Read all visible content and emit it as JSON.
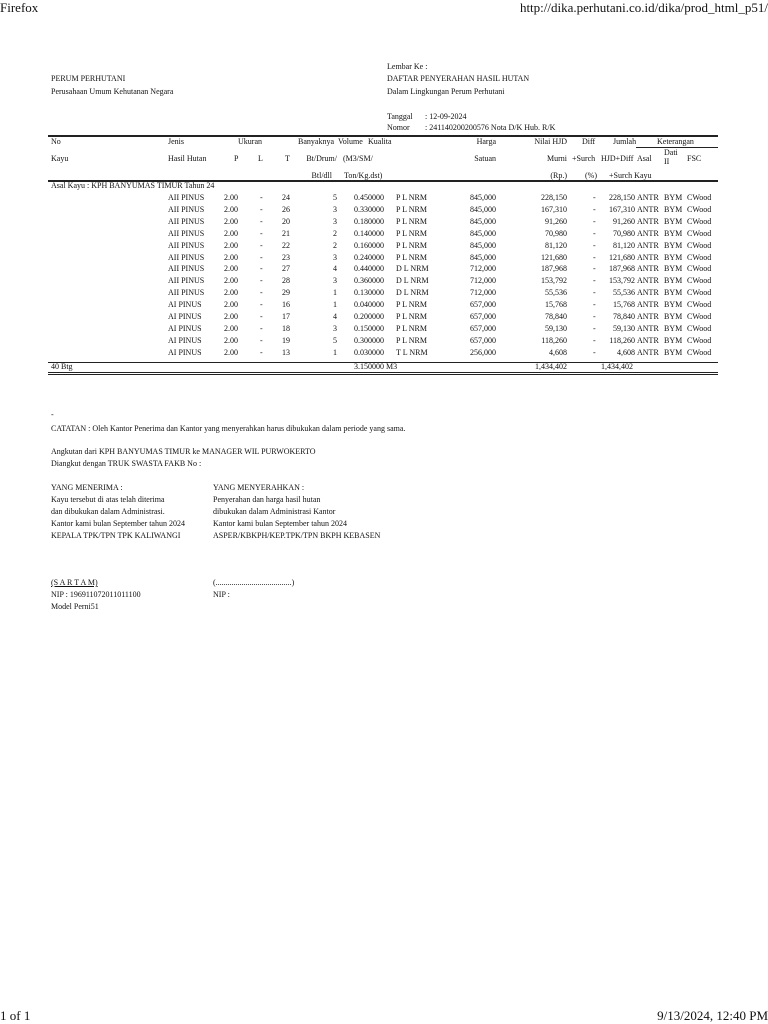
{
  "browser": {
    "app": "Firefox",
    "url": "http://dika.perhutani.co.id/dika/prod_html_p51/",
    "page": "1 of 1",
    "datetime": "9/13/2024, 12:40 PM"
  },
  "header": {
    "org": "PERUM PERHUTANI",
    "org_sub": "Perusahaan Umum Kehutanan Negara",
    "lembar": "Lembar Ke :",
    "title": "DAFTAR PENYERAHAN HASIL HUTAN",
    "subtitle": "Dalam Lingkungan Perum Perhutani",
    "tanggal_label": "Tanggal",
    "tanggal": ": 12-09-2024",
    "nomor_label": "Nomor",
    "nomor": ": 241140200200576  Nota D/K Hub. R/K"
  },
  "columns": {
    "no": "No",
    "kayu": "Kayu",
    "jenis": "Jenis",
    "hasil_hutan": "Hasil Hutan",
    "ukuran": "Ukuran",
    "p": "P",
    "l": "L",
    "t": "T",
    "banyaknya": "Banyaknya",
    "bt_drum": "Bt/Drum/",
    "btl_dll": "Btl/dll",
    "volume": "Volume",
    "m3": "(M3/SM/",
    "ton": "Ton/Kg.dst)",
    "kualita": "Kualita",
    "harga": "Harga",
    "satuan": "Satuan",
    "nilai": "Nilai HJD",
    "murni": "Murni",
    "rp": "(Rp.)",
    "diff": "Diff",
    "surch": "+Surch",
    "pct": "(%)",
    "jumlah": "Jumlah",
    "hjd_diff": "HJD+Diff",
    "surch_kayu": "+Surch Kayu",
    "keterangan": "Keterangan",
    "asal": "Asal",
    "dati": "Dati II",
    "fsc": "FSC"
  },
  "group_label": "Asal Kayu : KPH BANYUMAS TIMUR  Tahun  24",
  "rows": [
    [
      "AII PINUS",
      "2.00",
      "-",
      "24",
      "5",
      "0.450000",
      "P L NRM",
      "845,000",
      "228,150",
      "-",
      "228,150",
      "ANTR",
      "BYM",
      "CWood"
    ],
    [
      "AII PINUS",
      "2.00",
      "-",
      "26",
      "3",
      "0.330000",
      "P L NRM",
      "845,000",
      "167,310",
      "-",
      "167,310",
      "ANTR",
      "BYM",
      "CWood"
    ],
    [
      "AII PINUS",
      "2.00",
      "-",
      "20",
      "3",
      "0.180000",
      "P L NRM",
      "845,000",
      "91,260",
      "-",
      "91,260",
      "ANTR",
      "BYM",
      "CWood"
    ],
    [
      "AII PINUS",
      "2.00",
      "-",
      "21",
      "2",
      "0.140000",
      "P L NRM",
      "845,000",
      "70,980",
      "-",
      "70,980",
      "ANTR",
      "BYM",
      "CWood"
    ],
    [
      "AII PINUS",
      "2.00",
      "-",
      "22",
      "2",
      "0.160000",
      "P L NRM",
      "845,000",
      "81,120",
      "-",
      "81,120",
      "ANTR",
      "BYM",
      "CWood"
    ],
    [
      "AII PINUS",
      "2.00",
      "-",
      "23",
      "3",
      "0.240000",
      "P L NRM",
      "845,000",
      "121,680",
      "-",
      "121,680",
      "ANTR",
      "BYM",
      "CWood"
    ],
    [
      "AII PINUS",
      "2.00",
      "-",
      "27",
      "4",
      "0.440000",
      "D L NRM",
      "712,000",
      "187,968",
      "-",
      "187,968",
      "ANTR",
      "BYM",
      "CWood"
    ],
    [
      "AII PINUS",
      "2.00",
      "-",
      "28",
      "3",
      "0.360000",
      "D L NRM",
      "712,000",
      "153,792",
      "-",
      "153,792",
      "ANTR",
      "BYM",
      "CWood"
    ],
    [
      "AII PINUS",
      "2.00",
      "-",
      "29",
      "1",
      "0.130000",
      "D L NRM",
      "712,000",
      "55,536",
      "-",
      "55,536",
      "ANTR",
      "BYM",
      "CWood"
    ],
    [
      "AI PINUS",
      "2.00",
      "-",
      "16",
      "1",
      "0.040000",
      "P L NRM",
      "657,000",
      "15,768",
      "-",
      "15,768",
      "ANTR",
      "BYM",
      "CWood"
    ],
    [
      "AI PINUS",
      "2.00",
      "-",
      "17",
      "4",
      "0.200000",
      "P L NRM",
      "657,000",
      "78,840",
      "-",
      "78,840",
      "ANTR",
      "BYM",
      "CWood"
    ],
    [
      "AI PINUS",
      "2.00",
      "-",
      "18",
      "3",
      "0.150000",
      "P L NRM",
      "657,000",
      "59,130",
      "-",
      "59,130",
      "ANTR",
      "BYM",
      "CWood"
    ],
    [
      "AI PINUS",
      "2.00",
      "-",
      "19",
      "5",
      "0.300000",
      "P L NRM",
      "657,000",
      "118,260",
      "-",
      "118,260",
      "ANTR",
      "BYM",
      "CWood"
    ],
    [
      "AI PINUS",
      "2.00",
      "-",
      "13",
      "1",
      "0.030000",
      "T L NRM",
      "256,000",
      "4,608",
      "-",
      "4,608",
      "ANTR",
      "BYM",
      "CWood"
    ]
  ],
  "totals": {
    "count": "40  Btg",
    "volume": "3.150000 M3",
    "nilai": "1,434,402",
    "jumlah": "1,434,402"
  },
  "notes": {
    "dash": "-",
    "catatan": "CATATAN : Oleh Kantor Penerima dan Kantor yang menyerahkan harus dibukukan dalam periode yang sama.",
    "angkutan": "Angkutan dari KPH BANYUMAS TIMUR ke MANAGER WIL PURWOKERTO",
    "diangkut": "Diangkut dengan TRUK SWASTA     FAKB No :"
  },
  "receiver": {
    "title": "YANG MENERIMA :",
    "l1": "Kayu tersebut di atas telah diterima",
    "l2": "dan dibukukan dalam Administrasi.",
    "l3": "Kantor kami bulan September tahun 2024",
    "l4": "KEPALA TPK/TPN TPK KALIWANGI",
    "name": "(S A R T A M)",
    "nip": "NIP : 196911072011011100",
    "model": "Model Perni51"
  },
  "sender": {
    "title": "YANG MENYERAHKAN :",
    "l1": "Penyerahan dan harga hasil hutan",
    "l2": "dibukukan dalam Administrasi Kantor",
    "l3": "Kantor kami bulan September tahun 2024",
    "l4": "ASPER/KBKPH/KEP.TPK/TPN BKPH KEBASEN",
    "name": "(......................................)",
    "nip": "NIP :"
  }
}
